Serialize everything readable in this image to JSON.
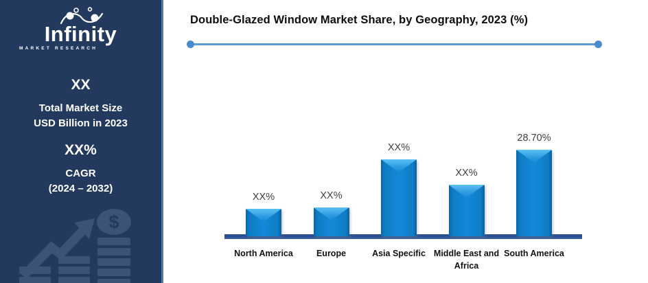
{
  "sidebar": {
    "logo": {
      "name": "Infinity",
      "subtitle": "MARKET RESEARCH"
    },
    "stats": [
      {
        "value": "XX",
        "label_lines": [
          "Total Market Size",
          "USD Billion in 2023"
        ]
      },
      {
        "value": "XX%",
        "label_lines": [
          "CAGR",
          "(2024 – 2032)"
        ]
      }
    ],
    "watermark_icon": "growth-chart-dollar-icon",
    "colors": {
      "background": "#233A5E",
      "edge": "#4E7CAD",
      "watermark": "#3B5374"
    }
  },
  "header": {
    "title": "Double-Glazed Window Market Share, by Geography, 2023 (%)"
  },
  "chart_data": {
    "type": "bar",
    "title": "Double-Glazed Window Market Share, by Geography, 2023 (%)",
    "categories": [
      "North America",
      "Europe",
      "Asia Specific",
      "Middle East and Africa",
      "South America"
    ],
    "values": [
      9.1,
      9.6,
      25.5,
      17.0,
      28.7
    ],
    "data_labels": [
      "XX%",
      "XX%",
      "XX%",
      "XX%",
      "28.70%"
    ],
    "xlabel": "",
    "ylabel": "",
    "ylim": [
      0,
      32
    ],
    "grid": false,
    "legend": false,
    "bar_color": "#1489D9",
    "axis_line_color": "#2E5494",
    "divider_line_color": "#5B9BD5"
  }
}
